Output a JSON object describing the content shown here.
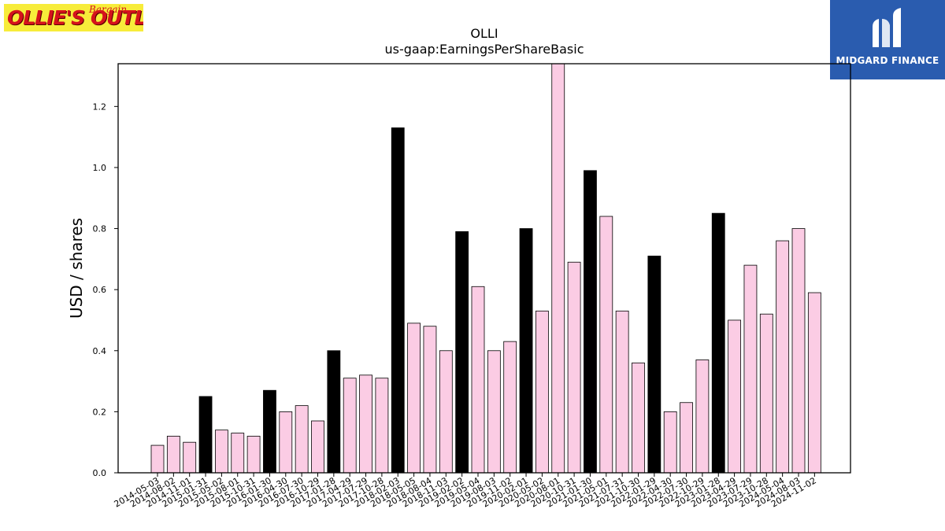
{
  "logos": {
    "left_main": "OLLIE'S OUTLET",
    "left_sub": "Bargain",
    "right_brand": "MIDGARD FINANCE"
  },
  "chart_data": {
    "type": "bar",
    "title": "OLLI",
    "subtitle": "us-gaap:EarningsPerShareBasic",
    "xlabel": "",
    "ylabel": "USD / shares",
    "ylim": [
      0,
      1.34
    ],
    "yticks": [
      0.0,
      0.2,
      0.4,
      0.6,
      0.8,
      1.0,
      1.2
    ],
    "grid": false,
    "colors": {
      "quarter": "#fbcce4",
      "annual": "#000000",
      "edge": "#000000"
    },
    "categories": [
      "2014-05-03",
      "2014-08-02",
      "2014-11-01",
      "2015-01-31",
      "2015-05-02",
      "2015-08-01",
      "2015-10-31",
      "2016-01-30",
      "2016-04-30",
      "2016-07-30",
      "2016-10-29",
      "2017-01-28",
      "2017-04-29",
      "2017-07-29",
      "2017-10-28",
      "2018-02-03",
      "2018-05-05",
      "2018-08-04",
      "2018-11-03",
      "2019-02-02",
      "2019-05-04",
      "2019-08-03",
      "2019-11-02",
      "2020-02-01",
      "2020-05-02",
      "2020-08-01",
      "2020-10-31",
      "2021-01-30",
      "2021-05-01",
      "2021-07-31",
      "2021-10-30",
      "2022-01-29",
      "2022-04-30",
      "2022-07-30",
      "2022-10-29",
      "2023-01-28",
      "2023-04-29",
      "2023-07-29",
      "2023-10-28",
      "2024-05-04",
      "2024-08-03",
      "2024-11-02"
    ],
    "values": [
      0.09,
      0.12,
      0.1,
      0.25,
      0.14,
      0.13,
      0.12,
      0.27,
      0.2,
      0.22,
      0.17,
      0.4,
      0.31,
      0.32,
      0.31,
      1.13,
      0.49,
      0.48,
      0.4,
      0.79,
      0.61,
      0.4,
      0.43,
      0.8,
      0.53,
      1.35,
      0.69,
      0.99,
      0.84,
      0.53,
      0.36,
      0.71,
      0.2,
      0.23,
      0.37,
      0.85,
      0.5,
      0.68,
      0.52,
      0.76,
      0.8,
      0.59
    ],
    "annual": [
      false,
      false,
      false,
      true,
      false,
      false,
      false,
      true,
      false,
      false,
      false,
      true,
      false,
      false,
      false,
      true,
      false,
      false,
      false,
      true,
      false,
      false,
      false,
      true,
      false,
      false,
      false,
      true,
      false,
      false,
      false,
      true,
      false,
      false,
      false,
      true,
      false,
      false,
      false,
      false,
      false,
      false
    ]
  }
}
